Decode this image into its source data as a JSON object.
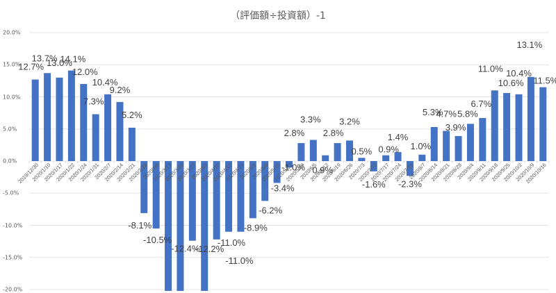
{
  "chart_data": {
    "type": "bar",
    "title": "（評価額÷投資額）-1",
    "xlabel": "",
    "ylabel": "",
    "ylim": [
      -0.2,
      0.2
    ],
    "yticks": [
      "20.0%",
      "15.0%",
      "10.0%",
      "5.0%",
      "0.0%",
      "-5.0%",
      "-10.0%",
      "-15.0%",
      "-20.0%"
    ],
    "grid": true,
    "legend": null,
    "bar_color": "#4472C4",
    "categories": [
      "2019/12/30",
      "2020/1/10",
      "2020/1/17",
      "2020/1/22",
      "2020/1/24",
      "2020/1/31",
      "2020/2/7",
      "2020/2/14",
      "2020/2/21",
      "2020/2/28",
      "2020/3/6",
      "2020/3/13",
      "2020/3/20",
      "2020/3/27",
      "2020/4/3",
      "2020/4/10",
      "2020/4/17",
      "2020/4/24",
      "2020/5/1",
      "2020/5/8",
      "2020/5/15",
      "2020/5/22",
      "2020/5/29",
      "2020/6/5",
      "2020/6/12",
      "2020/6/19",
      "2020/6/26",
      "2020/7/3",
      "2020/7/10",
      "2020/7/17",
      "2020/7/24",
      "2020/7/31",
      "2020/8/7",
      "2020/8/14",
      "2020/8/21",
      "2020/8/28",
      "2020/9/4",
      "2020/9/11",
      "2020/9/18",
      "2020/9/25",
      "2020/10/2",
      "2020/10/9",
      "2020/10/16"
    ],
    "values": [
      12.7,
      13.7,
      13.0,
      14.1,
      12.0,
      7.3,
      10.4,
      9.2,
      5.2,
      -8.1,
      -10.5,
      -21.0,
      -21.0,
      -12.4,
      -21.0,
      -12.2,
      -11.0,
      -11.0,
      -8.9,
      -6.2,
      -3.4,
      -1.0,
      2.8,
      3.3,
      0.9,
      2.8,
      3.2,
      0.5,
      -1.6,
      0.9,
      1.4,
      -2.3,
      1.0,
      5.3,
      4.7,
      3.9,
      5.8,
      6.7,
      11.0,
      10.6,
      10.4,
      13.1,
      11.5
    ],
    "labels": [
      "12.7%",
      "13.7%",
      "13.0%",
      "14.1%",
      "12.0%",
      "7.3%",
      "10.4%",
      "9.2%",
      "5.2%",
      "-8.1%",
      "-10.5%",
      "",
      "",
      "-12.4%",
      "",
      "-12.2%",
      "-11.0%",
      "-11.0%",
      "-8.9%",
      "-6.2%",
      "-3.4%",
      "-1.0%",
      "2.8%",
      "3.3%",
      "0.9%",
      "2.8%",
      "3.2%",
      "0.5%",
      "-1.6%",
      "0.9%",
      "1.4%",
      "-2.3%",
      "1.0%",
      "5.3%",
      "4.7%",
      "3.9%",
      "5.8%",
      "6.7%",
      "11.0%",
      "10.6%",
      "10.4%",
      "13.1%",
      "11.5%"
    ],
    "note": "Bars for 2020/3/13, 2020/3/20 and 2020/4/3 extend below the -20% axis limit; their labels are not visible."
  }
}
